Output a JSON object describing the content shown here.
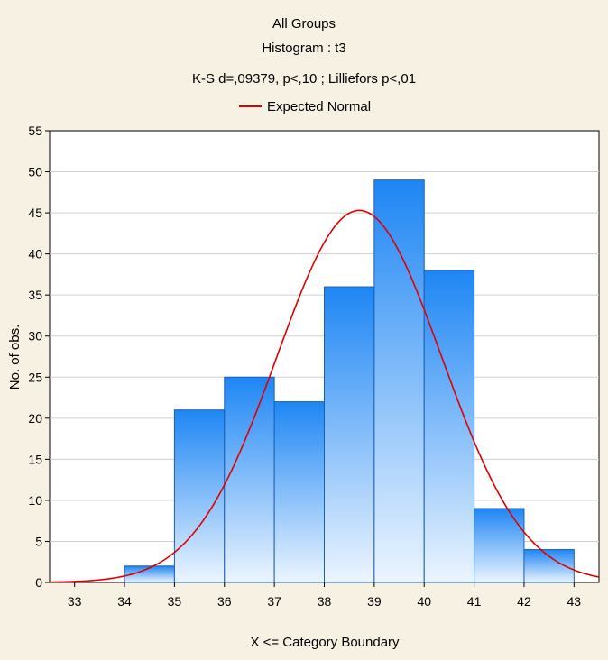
{
  "chart_data": {
    "type": "bar",
    "title": "All Groups",
    "subtitle": "Histogram : t3",
    "stats_line": "K-S d=,09379, p<,10 ; Lilliefors p<,01",
    "legend": {
      "label": "Expected Normal",
      "color": "#e00000",
      "placement": "top"
    },
    "xlabel": "X <= Category Boundary",
    "ylabel": "No. of obs.",
    "xlim": [
      32.5,
      43.5
    ],
    "ylim": [
      0,
      55
    ],
    "x_ticks": [
      33,
      34,
      35,
      36,
      37,
      38,
      39,
      40,
      41,
      42,
      43
    ],
    "y_ticks": [
      0,
      5,
      10,
      15,
      20,
      25,
      30,
      35,
      40,
      45,
      50,
      55
    ],
    "bins": [
      {
        "lower": 33,
        "upper": 34,
        "count": 0
      },
      {
        "lower": 34,
        "upper": 35,
        "count": 2
      },
      {
        "lower": 35,
        "upper": 36,
        "count": 21
      },
      {
        "lower": 36,
        "upper": 37,
        "count": 25
      },
      {
        "lower": 37,
        "upper": 38,
        "count": 22
      },
      {
        "lower": 38,
        "upper": 39,
        "count": 36
      },
      {
        "lower": 39,
        "upper": 40,
        "count": 49
      },
      {
        "lower": 40,
        "upper": 41,
        "count": 38
      },
      {
        "lower": 41,
        "upper": 42,
        "count": 9
      },
      {
        "lower": 42,
        "upper": 43,
        "count": 4
      }
    ],
    "expected_normal": {
      "peak_x": 38.7,
      "peak_y": 45.3,
      "sd": 1.65
    },
    "grid": true,
    "colors": {
      "bar_top": "#1e86f4",
      "bar_bottom": "#ecf5ff",
      "bar_border": "#1a5fb4",
      "curve": "#e00000",
      "page_background": "#f7f1e4",
      "plot_background": "#ffffff",
      "grid": "#d0d0d0"
    }
  }
}
